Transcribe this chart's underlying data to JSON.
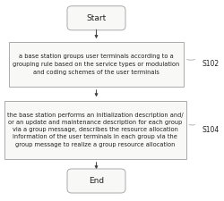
{
  "bg_color": "#f8f8f6",
  "box_edge_color": "#aaaaaa",
  "text_color": "#222222",
  "arrow_color": "#444444",
  "start_end_text": [
    "Start",
    "End"
  ],
  "step1_text": "a base station groups user terminals according to a\ngrouping rule based on the service types or modulation\nand coding schemes of the user terminals",
  "step2_text": "the base station performs an initialization description and/\nor an update and maintenance description for each group\nvia a group message, describes the resource allocation\ninformation of the user terminals in each group via the\ngroup message to realize a group resource allocation",
  "label1": "S102",
  "label2": "S104",
  "fontsize_main": 4.8,
  "fontsize_label": 5.5,
  "fontsize_startend": 6.5,
  "fig_width": 2.5,
  "fig_height": 2.25,
  "dpi": 100
}
